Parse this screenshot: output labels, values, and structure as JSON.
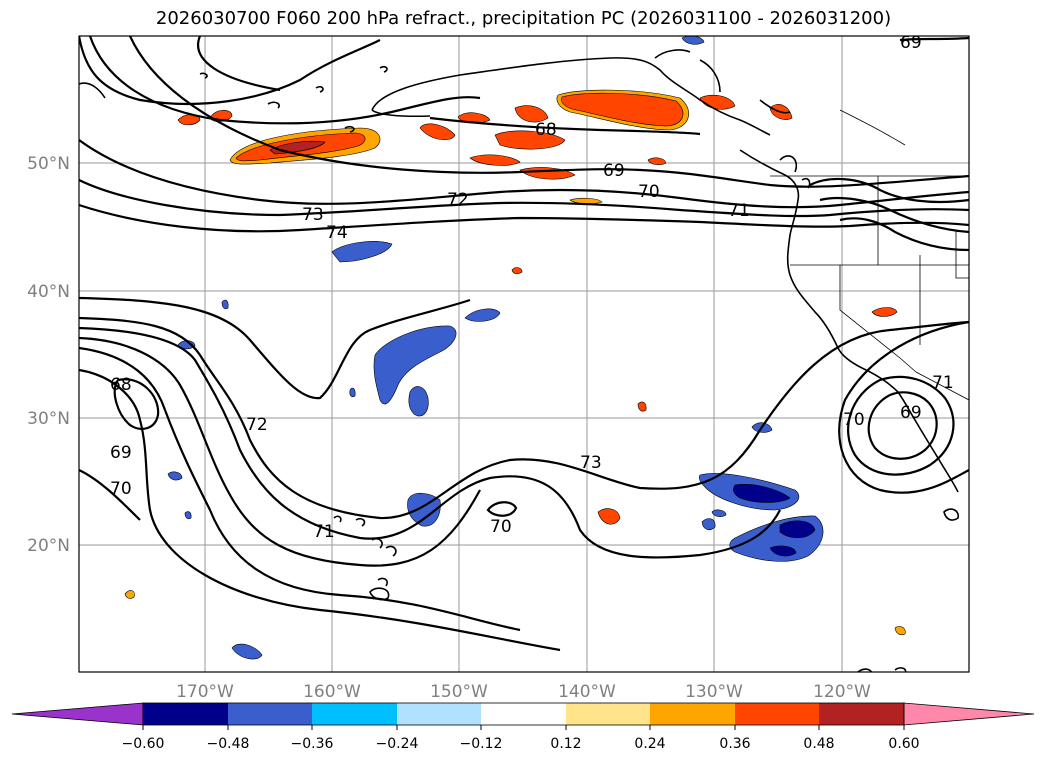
{
  "title": "2026030700 F060 200 hPa refract., precipitation PC (2026031100 - 2026031200)",
  "lat_labels": [
    "50°N",
    "40°N",
    "30°N",
    "20°N"
  ],
  "lon_labels": [
    "170°W",
    "160°W",
    "150°W",
    "140°W",
    "130°W",
    "120°W"
  ],
  "colorbar": {
    "tick_labels": [
      "−0.60",
      "−0.48",
      "−0.36",
      "−0.24",
      "−0.12",
      "0.12",
      "0.24",
      "0.36",
      "0.48",
      "0.60"
    ],
    "colors": [
      "#9933cc",
      "#00008b",
      "#3a5fcd",
      "#00bfff",
      "#b0e2ff",
      "#ffffff",
      "#ffe48a",
      "#ffa500",
      "#ff4500",
      "#b22222",
      "#ff88aa"
    ]
  },
  "contour_labels": [
    {
      "id": "c68a",
      "text": "68"
    },
    {
      "id": "c68b",
      "text": "68"
    },
    {
      "id": "c69a",
      "text": "69"
    },
    {
      "id": "c69b",
      "text": "69"
    },
    {
      "id": "c69c",
      "text": "69"
    },
    {
      "id": "c69d",
      "text": "69"
    },
    {
      "id": "c70a",
      "text": "70"
    },
    {
      "id": "c70b",
      "text": "70"
    },
    {
      "id": "c70c",
      "text": "70"
    },
    {
      "id": "c70d",
      "text": "70"
    },
    {
      "id": "c71a",
      "text": "71"
    },
    {
      "id": "c71b",
      "text": "71"
    },
    {
      "id": "c71c",
      "text": "71"
    },
    {
      "id": "c72a",
      "text": "72"
    },
    {
      "id": "c72b",
      "text": "72"
    },
    {
      "id": "c73a",
      "text": "73"
    },
    {
      "id": "c73b",
      "text": "73"
    },
    {
      "id": "c74a",
      "text": "74"
    }
  ]
}
